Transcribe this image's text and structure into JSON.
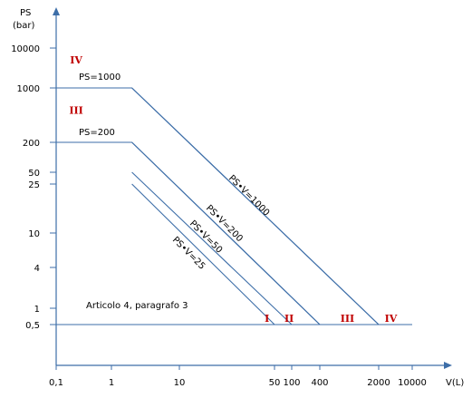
{
  "chart_data": {
    "type": "line",
    "x_scale": "log",
    "y_scale": "log",
    "ylabel_line1": "PS",
    "ylabel_line2": "(bar)",
    "xlabel": "V(L)",
    "x_ticks": [
      "0,1",
      "1",
      "10",
      "50",
      "100",
      "400",
      "2000",
      "10000"
    ],
    "x_tick_values": [
      0.1,
      1,
      10,
      50,
      100,
      400,
      2000,
      10000
    ],
    "y_ticks": [
      "0,5",
      "1",
      "4",
      "10",
      "25",
      "50",
      "200",
      "1000",
      "10000"
    ],
    "y_tick_values": [
      0.5,
      1,
      4,
      10,
      25,
      50,
      200,
      1000,
      10000
    ],
    "xlim": [
      0.1,
      16000
    ],
    "ylim": [
      0.14,
      60000
    ],
    "series": [
      {
        "name": "PS=1000",
        "points": [
          [
            0.1,
            1000
          ],
          [
            2,
            1000
          ],
          [
            2000,
            0.5
          ]
        ]
      },
      {
        "name": "PS=200",
        "points": [
          [
            0.1,
            200
          ],
          [
            2,
            200
          ],
          [
            400,
            0.5
          ]
        ]
      },
      {
        "name": "PS•V=1000",
        "points": [
          [
            2000,
            0.5
          ],
          [
            2,
            1000
          ]
        ]
      },
      {
        "name": "PS•V=200",
        "points": [
          [
            2,
            200
          ],
          [
            400,
            0.5
          ]
        ]
      },
      {
        "name": "PS•V=50",
        "points": [
          [
            2,
            50
          ],
          [
            100,
            0.5
          ]
        ]
      },
      {
        "name": "PS•V=25",
        "points": [
          [
            2,
            25
          ],
          [
            50,
            0.5
          ]
        ]
      },
      {
        "name": "baseline",
        "points": [
          [
            0.1,
            0.5
          ],
          [
            10000,
            0.5
          ]
        ]
      }
    ],
    "annotations": {
      "ps1000": "PS=1000",
      "ps200": "PS=200",
      "psv1000": "PS•V=1000",
      "psv200": "PS•V=200",
      "psv50": "PS•V=50",
      "psv25": "PS•V=25",
      "article": "Articolo 4, paragrafo 3"
    },
    "categories": [
      {
        "label": "IV",
        "x": 0.23,
        "y": 5000
      },
      {
        "label": "III",
        "x": 0.23,
        "y": 520
      },
      {
        "label": "I",
        "x": 44,
        "y": 0.65
      },
      {
        "label": "II",
        "x": 90,
        "y": 0.65
      },
      {
        "label": "III",
        "x": 850,
        "y": 0.65
      },
      {
        "label": "IV",
        "x": 3600,
        "y": 0.65
      }
    ],
    "colors": {
      "lines": "#3d6ea8",
      "categories": "#c00000"
    }
  }
}
